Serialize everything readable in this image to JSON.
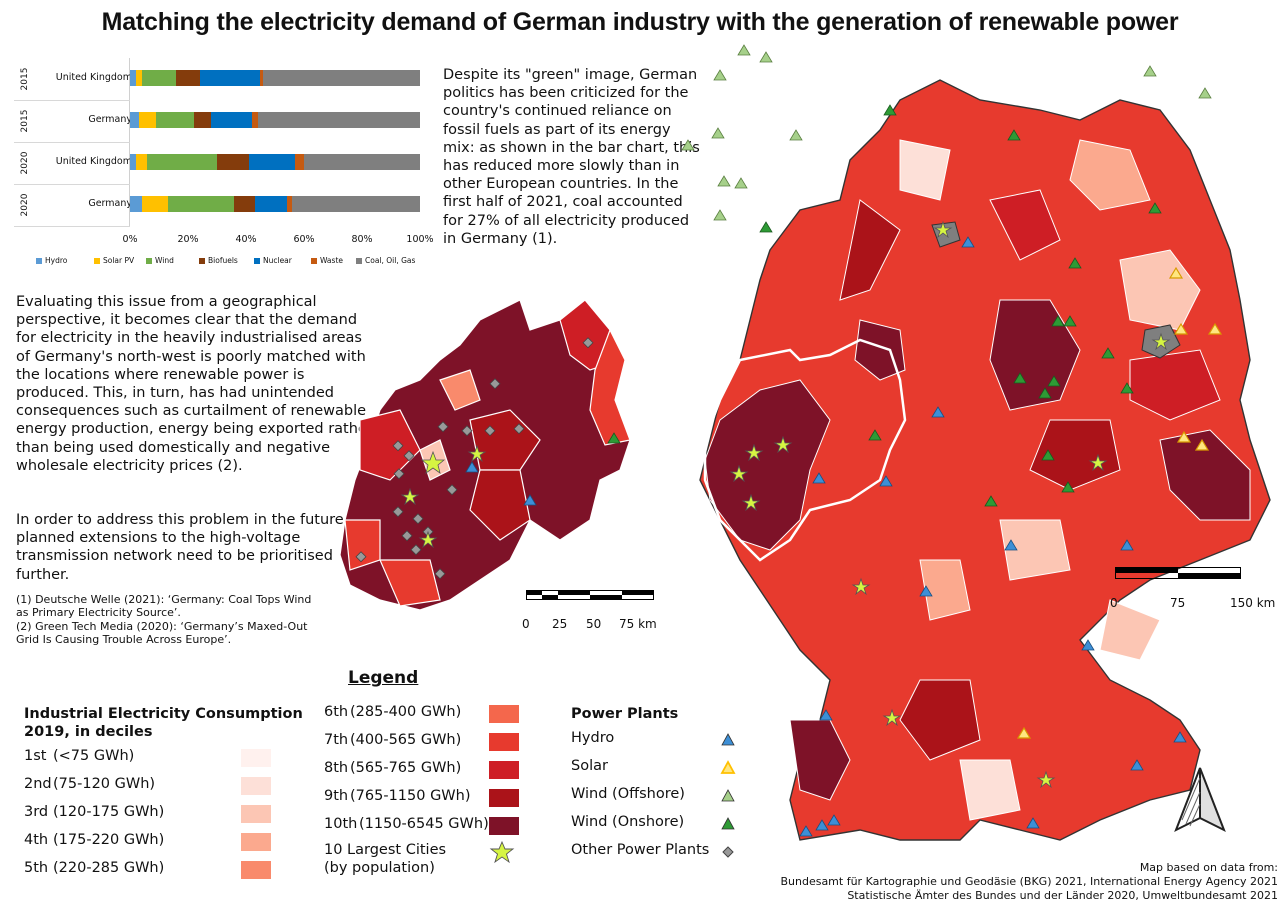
{
  "title": "Matching the electricity demand of German industry with the generation of renewable power",
  "chart_data": {
    "type": "bar",
    "stacked": true,
    "orientation": "horizontal",
    "categories": [
      {
        "year": "2015",
        "country": "United Kingdom"
      },
      {
        "year": "2015",
        "country": "Germany"
      },
      {
        "year": "2020",
        "country": "United Kingdom"
      },
      {
        "year": "2020",
        "country": "Germany"
      }
    ],
    "series": [
      {
        "name": "Hydro",
        "color": "#5b9bd5",
        "values": [
          2,
          3,
          2,
          4
        ]
      },
      {
        "name": "Solar PV",
        "color": "#ffc000",
        "values": [
          2,
          6,
          4,
          9
        ]
      },
      {
        "name": "Wind",
        "color": "#70ad47",
        "values": [
          12,
          13,
          24,
          23
        ]
      },
      {
        "name": "Biofuels",
        "color": "#843c0c",
        "values": [
          8,
          6,
          11,
          7
        ]
      },
      {
        "name": "Nuclear",
        "color": "#0070c0",
        "values": [
          21,
          14,
          16,
          11
        ]
      },
      {
        "name": "Waste",
        "color": "#c55a11",
        "values": [
          1,
          2,
          3,
          2
        ]
      },
      {
        "name": "Coal, Oil, Gas",
        "color": "#7f7f7f",
        "values": [
          54,
          56,
          40,
          44
        ]
      }
    ],
    "xticks": [
      "0%",
      "20%",
      "40%",
      "60%",
      "80%",
      "100%"
    ],
    "xlim": [
      0,
      100
    ]
  },
  "intro_text": "Despite its \"green\" image, German politics has been criticized for the country's continued reliance on fossil fuels as part of its energy mix: as shown in the bar chart, this has reduced more slowly than in other European countries. In the first half of 2021, coal accounted for 27% of all electricity produced in Germany (1).",
  "body_text_1": "Evaluating this issue from a geographical perspective, it becomes clear that the demand for electricity in the heavily industrialised areas of Germany's north-west is poorly matched with the locations where renewable power is produced. This, in turn, has had unintended consequences such as curtailment of renewable energy production, energy being exported rather than being used domestically and negative wholesale electricity prices (2).",
  "body_text_2": "In order to address this problem in the future, planned extensions to the high-voltage transmission network need to be prioritised further.",
  "references": [
    "(1) Deutsche Welle (2021): ‘Germany: Coal Tops Wind as Primary Electricity Source’.",
    "(2) Green Tech Media (2020): ‘Germany’s Maxed-Out Grid Is Causing Trouble Across Europe’."
  ],
  "legend": {
    "title": "Legend",
    "consumption_heading": "Industrial Electricity Consumption 2019, in deciles",
    "deciles": [
      {
        "rank": "1st",
        "range": "(<75 GWh)",
        "color": "#fff1ee"
      },
      {
        "rank": "2nd",
        "range": "(75-120 GWh)",
        "color": "#fde0d8"
      },
      {
        "rank": "3rd",
        "range": "(120-175 GWh)",
        "color": "#fcc6b4"
      },
      {
        "rank": "4th",
        "range": "(175-220 GWh)",
        "color": "#fba98e"
      },
      {
        "rank": "5th",
        "range": "(220-285 GWh)",
        "color": "#f98a6c"
      },
      {
        "rank": "6th",
        "range": "(285-400 GWh)",
        "color": "#f4674c"
      },
      {
        "rank": "7th",
        "range": "(400-565 GWh)",
        "color": "#e73a2e"
      },
      {
        "rank": "8th",
        "range": "(565-765 GWh)",
        "color": "#ce1e25"
      },
      {
        "rank": "9th",
        "range": "(765-1150 GWh)",
        "color": "#ab1319"
      },
      {
        "rank": "10th",
        "range": "(1150-6545 GWh)",
        "color": "#7e1228"
      }
    ],
    "cities_label": "10 Largest Cities\n(by population)",
    "power_plants_heading": "Power Plants",
    "power_plants": [
      {
        "name": "Hydro",
        "color": "#3d8fd6",
        "shape": "triangle"
      },
      {
        "name": "Solar",
        "color": "#ffc000",
        "shape": "triangle-outline"
      },
      {
        "name": "Wind (Offshore)",
        "color": "#a6d08a",
        "shape": "triangle"
      },
      {
        "name": "Wind (Onshore)",
        "color": "#2e9a35",
        "shape": "triangle"
      },
      {
        "name": "Other Power Plants",
        "color": "#999999",
        "shape": "diamond"
      }
    ]
  },
  "scale_nrw": [
    "0",
    "25",
    "50",
    "75 km"
  ],
  "scale_germany": [
    "0",
    "75",
    "150 km"
  ],
  "credit": [
    "Map based on data from:",
    "Bundesamt für Kartographie und Geodäsie (BKG) 2021, International Energy Agency 2021",
    "Statistische Ämter des Bundes und der Länder 2020, Umweltbundesamt 2021"
  ]
}
